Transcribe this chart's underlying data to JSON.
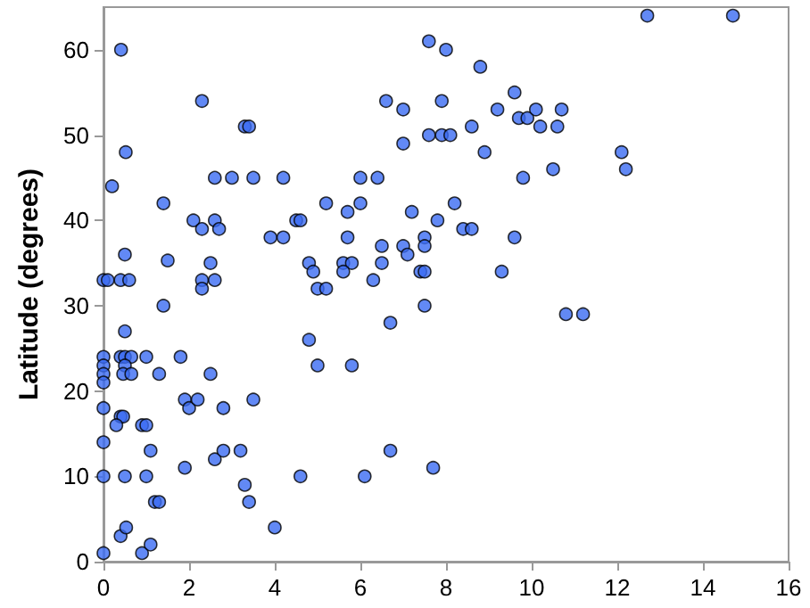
{
  "chart_data": {
    "type": "scatter",
    "ylabel": "Latitude (degrees)",
    "xlim": [
      0,
      16
    ],
    "xticks": [
      0,
      2,
      4,
      6,
      8,
      10,
      12,
      14,
      16
    ],
    "ylim": [
      0,
      65
    ],
    "yticks": [
      0,
      10,
      20,
      30,
      40,
      50,
      60
    ],
    "grid": false,
    "marker": "circle",
    "x": [
      0.41,
      0.52,
      0.2,
      2.3,
      3.3,
      3.4,
      2.6,
      3.0,
      3.5,
      4.2,
      1.4,
      2.1,
      2.3,
      2.6,
      2.7,
      3.9,
      4.2,
      1.5,
      2.5,
      0.5,
      0,
      0.1,
      0.4,
      0.6,
      2.3,
      2.6,
      2.3,
      1.4,
      0.5,
      0,
      0,
      0,
      0,
      0.4,
      0.5,
      0.65,
      0.5,
      0.46,
      0.65,
      1.0,
      1.3,
      1.8,
      2.5,
      0,
      0.4,
      0.46,
      0.3,
      0.9,
      1.0,
      1.9,
      2.0,
      2.2,
      2.8,
      3.5,
      0,
      1.1,
      0,
      0.5,
      1.0,
      1.9,
      2.6,
      2.8,
      3.2,
      3.3,
      3.4,
      1.2,
      1.3,
      0.4,
      0.53,
      0.9,
      1.1,
      0,
      4.0,
      7.6,
      8.0,
      8.8,
      9.6,
      6.6,
      7.0,
      7.9,
      9.2,
      9.7,
      9.9,
      10.1,
      10.2,
      7.6,
      7.9,
      8.1,
      8.6,
      7.0,
      8.9,
      10.5,
      6.0,
      6.4,
      9.8,
      5.2,
      6.0,
      8.2,
      5.7,
      7.2,
      4.5,
      4.6,
      7.8,
      5.7,
      7.5,
      8.4,
      8.6,
      9.6,
      6.5,
      7.0,
      7.5,
      7.1,
      4.8,
      5.6,
      5.8,
      6.5,
      4.9,
      5.6,
      7.4,
      7.5,
      9.3,
      5.0,
      5.2,
      6.3,
      7.5,
      6.7,
      4.8,
      5.0,
      5.8,
      6.7,
      7.7,
      4.6,
      6.1,
      12.7,
      14.7,
      10.7,
      10.6,
      12.1,
      12.2,
      10.8,
      11.2
    ],
    "series": [
      {
        "color": "#3b6cf2",
        "values": [
          60,
          48,
          44,
          54,
          51,
          51,
          45,
          45,
          45,
          45,
          42,
          40,
          39,
          40,
          39,
          38,
          38,
          35.3,
          35,
          36,
          33,
          33,
          33,
          33,
          33,
          33,
          32,
          30,
          27,
          24,
          23,
          22,
          21,
          24,
          24,
          24,
          23,
          22,
          22,
          24,
          22,
          24,
          22,
          18,
          17,
          17,
          16,
          16,
          16,
          19,
          18,
          19,
          18,
          19,
          14,
          13,
          10,
          10,
          10,
          11,
          12,
          13,
          13,
          9,
          7,
          7,
          7,
          3,
          4,
          1,
          2,
          1,
          4,
          61,
          60,
          58,
          55,
          54,
          53,
          54,
          53,
          52,
          52,
          53,
          51,
          50,
          50,
          50,
          51,
          49,
          48,
          46,
          45,
          45,
          45,
          42,
          42,
          42,
          41,
          41,
          40,
          40,
          40,
          38,
          38,
          39,
          39,
          38,
          37,
          37,
          37,
          36,
          35,
          35,
          35,
          35,
          34,
          34,
          34,
          34,
          34,
          32,
          32,
          33,
          30,
          28,
          26,
          23,
          23,
          13,
          11,
          10,
          10,
          64,
          64,
          53,
          51,
          48,
          46,
          29,
          29
        ]
      }
    ]
  }
}
